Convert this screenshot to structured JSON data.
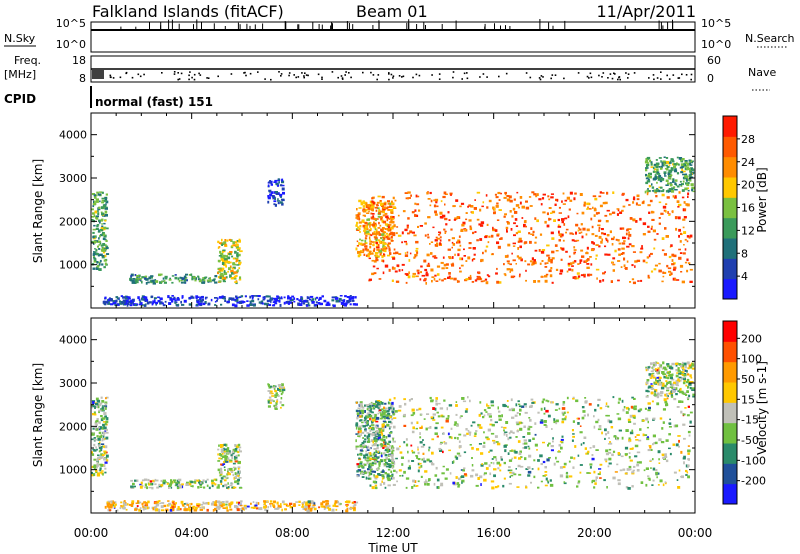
{
  "header": {
    "site": "Falkland Islands (fitACF)",
    "beam": "Beam 01",
    "date": "11/Apr/2011"
  },
  "strip_panels": {
    "nsky_label": "N.Sky",
    "nsky_ticks": [
      "10^5",
      "10^0"
    ],
    "nsearch_label": "N.Search",
    "nsearch_ticks": [
      "10^5",
      "10^0"
    ],
    "freq_label": "Freq.",
    "freq_unit": "[MHz]",
    "freq_ticks": [
      "18",
      "8"
    ],
    "nave_label": "Nave",
    "nave_ticks": [
      "60",
      "0"
    ],
    "cpid_label": "CPID",
    "cpid_value": "normal (fast) 151"
  },
  "chart_data": [
    {
      "type": "heatmap",
      "name": "power",
      "ylabel": "Slant Range [km]",
      "ylim": [
        0,
        4500
      ],
      "yticks": [
        "4000",
        "3000",
        "2000",
        "1000"
      ],
      "xlim": [
        0,
        24
      ],
      "colorbar": {
        "label": "Power [dB]",
        "ticks": [
          "28",
          "24",
          "20",
          "16",
          "12",
          "8",
          "4"
        ],
        "colors": [
          "#1a1aff",
          "#2040b0",
          "#20707a",
          "#3a9a5a",
          "#7ac040",
          "#ffc800",
          "#ff8c00",
          "#ff5a00",
          "#ff1a00"
        ]
      },
      "regions": [
        {
          "x0": 0.0,
          "x1": 0.6,
          "y0": 900,
          "y1": 2700,
          "level": 0.4
        },
        {
          "x0": 0.4,
          "x1": 1.2,
          "y0": 100,
          "y1": 250,
          "level": 0.15
        },
        {
          "x0": 1.5,
          "x1": 5.0,
          "y0": 600,
          "y1": 800,
          "level": 0.35
        },
        {
          "x0": 5.0,
          "x1": 5.9,
          "y0": 600,
          "y1": 1600,
          "level": 0.55
        },
        {
          "x0": 0.5,
          "x1": 10.5,
          "y0": 80,
          "y1": 300,
          "level": 0.1
        },
        {
          "x0": 7.0,
          "x1": 7.6,
          "y0": 2400,
          "y1": 3000,
          "level": 0.15
        },
        {
          "x0": 10.5,
          "x1": 12.0,
          "y0": 1200,
          "y1": 2500,
          "level": 0.7
        },
        {
          "x0": 11.0,
          "x1": 23.8,
          "y0": 600,
          "y1": 2700,
          "level": 0.82
        },
        {
          "x0": 22.0,
          "x1": 23.9,
          "y0": 2700,
          "y1": 3500,
          "level": 0.4
        }
      ]
    },
    {
      "type": "heatmap",
      "name": "velocity",
      "ylabel": "Slant Range [km]",
      "ylim": [
        0,
        4500
      ],
      "yticks": [
        "4000",
        "3000",
        "2000",
        "1000"
      ],
      "xlim": [
        0,
        24
      ],
      "xticks": [
        "00:00",
        "04:00",
        "08:00",
        "12:00",
        "16:00",
        "20:00",
        "00:00"
      ],
      "xlabel": "Time UT",
      "colorbar": {
        "label": "Velocity [m s-1]",
        "ticks": [
          "200",
          "100",
          "50",
          "15",
          "-15",
          "-50",
          "-100",
          "-200"
        ],
        "colors": [
          "#1a1aff",
          "#20509a",
          "#2a8a6a",
          "#70c040",
          "#c0c0b8",
          "#ffc800",
          "#ff9a00",
          "#ff5000",
          "#ff0000"
        ]
      },
      "regions": [
        {
          "x0": 0.0,
          "x1": 0.6,
          "y0": 900,
          "y1": 2700,
          "level": 0.45
        },
        {
          "x0": 0.5,
          "x1": 10.5,
          "y0": 80,
          "y1": 300,
          "level": 0.62
        },
        {
          "x0": 1.5,
          "x1": 5.0,
          "y0": 600,
          "y1": 800,
          "level": 0.45
        },
        {
          "x0": 5.0,
          "x1": 5.9,
          "y0": 600,
          "y1": 1600,
          "level": 0.45
        },
        {
          "x0": 7.0,
          "x1": 7.6,
          "y0": 2400,
          "y1": 3000,
          "level": 0.45
        },
        {
          "x0": 10.5,
          "x1": 12.0,
          "y0": 800,
          "y1": 2600,
          "level": 0.35
        },
        {
          "x0": 11.0,
          "x1": 23.8,
          "y0": 600,
          "y1": 2700,
          "level": 0.45
        },
        {
          "x0": 22.0,
          "x1": 23.9,
          "y0": 2700,
          "y1": 3500,
          "level": 0.45
        }
      ]
    }
  ]
}
